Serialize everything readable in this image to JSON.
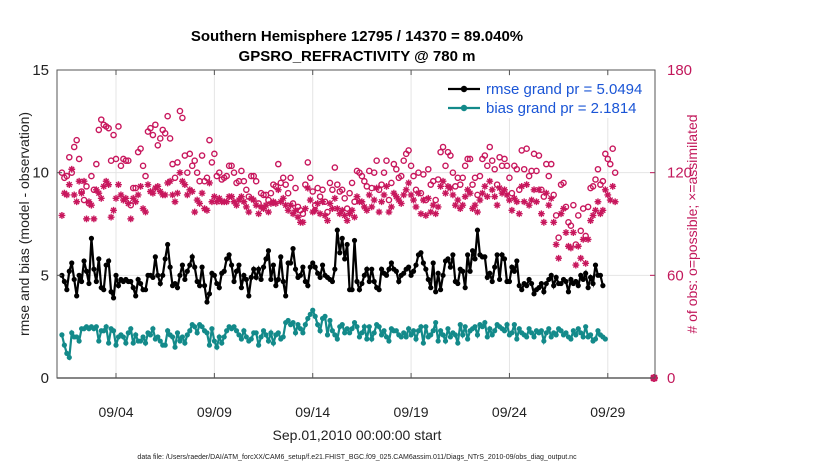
{
  "chart_data": {
    "type": "line",
    "title": "Southern Hemisphere 12795 / 14370 = 89.040%",
    "subtitle": "GPSRO_REFRACTIVITY @ 780 m",
    "xlabel": "Sep.01,2010 00:00:00 start",
    "ylabel": "rmse and bias (model - observation)",
    "ylabel_right": "# of obs: o=possible; ×=assimilated",
    "footnote": "data file: /Users/raeder/DAI/ATM_forcXX/CAM6_setup/f.e21.FHIST_BGC.f09_025.CAM6assim.011/Diags_NTrS_2010-09/obs_diag_output.nc",
    "x_start_day": 1,
    "x_end_day": 31.4,
    "x_tick_days": [
      4,
      9,
      14,
      19,
      24,
      29
    ],
    "x_tick_labels": [
      "09/04",
      "09/09",
      "09/14",
      "09/19",
      "09/24",
      "09/29"
    ],
    "ylim": [
      0,
      15
    ],
    "yticks": [
      0,
      5,
      10,
      15
    ],
    "ylim_right": [
      0,
      180
    ],
    "yticks_right": [
      0,
      60,
      120,
      180
    ],
    "grid": true,
    "legend_position": "top-right",
    "series": [
      {
        "name": "rmse grand pr = 5.0494",
        "axis": "left",
        "color": "#000000",
        "marker": "filled-circle",
        "values": [
          5.0,
          4.7,
          4.3,
          5.2,
          5.6,
          4.8,
          4.0,
          5.0,
          4.7,
          5.7,
          5.2,
          4.6,
          6.8,
          5.3,
          4.7,
          5.8,
          4.4,
          4.3,
          5.5,
          5.7,
          4.2,
          3.9,
          5.0,
          4.5,
          4.8,
          4.7,
          4.8,
          4.7,
          4.7,
          4.4,
          4.0,
          4.8,
          4.6,
          4.3,
          4.3,
          5.0,
          5.0,
          4.9,
          5.9,
          5.0,
          4.6,
          5.0,
          5.8,
          6.5,
          5.4,
          4.5,
          4.6,
          4.4,
          5.0,
          5.5,
          4.8,
          5.2,
          5.5,
          5.9,
          5.4,
          4.7,
          4.5,
          5.4,
          4.5,
          3.7,
          4.1,
          5.1,
          5.0,
          4.6,
          4.4,
          5.1,
          5.2,
          5.8,
          6.0,
          5.5,
          4.7,
          5.2,
          5.5,
          4.4,
          5.0,
          4.8,
          4.0,
          4.9,
          5.3,
          4.9,
          5.3,
          4.8,
          5.4,
          5.8,
          6.2,
          4.8,
          5.5,
          4.5,
          4.8,
          5.9,
          4.7,
          4.0,
          5.6,
          5.6,
          6.3,
          5.3,
          4.9,
          5.0,
          5.4,
          4.7,
          4.5,
          5.4,
          5.6,
          5.4,
          5.1,
          4.9,
          5.5,
          5.0,
          4.9,
          4.8,
          4.7,
          5.3,
          7.2,
          6.1,
          6.8,
          5.8,
          6.5,
          4.3,
          4.3,
          6.7,
          4.7,
          4.3,
          4.6,
          5.0,
          5.3,
          4.7,
          5.3,
          4.7,
          4.4,
          4.3,
          5.3,
          5.1,
          5.0,
          5.3,
          5.6,
          5.3,
          5.2,
          4.7,
          5.0,
          5.1,
          5.3,
          5.4,
          5.0,
          5.2,
          5.5,
          6.0,
          6.1,
          5.6,
          5.3,
          4.8,
          4.4,
          5.6,
          4.2,
          5.1,
          4.3,
          5.0,
          5.7,
          5.8,
          5.4,
          6.0,
          4.7,
          4.6,
          5.3,
          5.2,
          4.4,
          6.0,
          5.2,
          6.2,
          5.8,
          7.2,
          6.0,
          5.9,
          5.9,
          4.9,
          5.1,
          4.7,
          5.4,
          6.0,
          4.8,
          6.0,
          5.8,
          4.7,
          4.7,
          5.4,
          5.2,
          5.7,
          4.5,
          4.3,
          4.6,
          4.5,
          4.8,
          4.6,
          4.1,
          4.3,
          4.4,
          4.6,
          4.2,
          4.6,
          4.8,
          5.0,
          4.5,
          4.9,
          4.6,
          4.6,
          4.8,
          4.7,
          4.2,
          4.8,
          4.6,
          4.7,
          4.5,
          5.0,
          4.8,
          5.1,
          4.4,
          4.9,
          4.6,
          5.5,
          5.0,
          5.0,
          4.5
        ]
      },
      {
        "name": "bias grand pr = 2.1814",
        "axis": "left",
        "color": "#138a8a",
        "marker": "filled-circle",
        "values": [
          2.1,
          1.6,
          1.2,
          1.0,
          2.2,
          2.0,
          2.0,
          1.8,
          2.4,
          2.4,
          2.5,
          2.4,
          2.5,
          2.4,
          2.5,
          1.8,
          2.3,
          2.3,
          2.5,
          1.7,
          2.4,
          2.3,
          1.6,
          2.0,
          2.1,
          2.0,
          1.7,
          2.2,
          2.4,
          1.7,
          2.1,
          1.8,
          1.8,
          2.0,
          1.7,
          2.2,
          2.1,
          2.4,
          1.9,
          2.0,
          1.8,
          1.6,
          1.6,
          2.3,
          2.1,
          2.0,
          1.5,
          2.2,
          1.8,
          2.0,
          1.7,
          2.1,
          2.3,
          2.6,
          2.5,
          2.2,
          2.6,
          2.5,
          2.3,
          2.2,
          1.6,
          2.4,
          1.8,
          1.5,
          2.0,
          1.7,
          2.0,
          2.3,
          2.5,
          2.4,
          2.5,
          2.3,
          2.1,
          1.9,
          2.3,
          2.0,
          1.8,
          1.9,
          2.2,
          2.2,
          1.6,
          2.0,
          2.3,
          2.1,
          1.8,
          2.2,
          1.7,
          2.1,
          2.2,
          1.9,
          2.0,
          2.7,
          2.8,
          2.6,
          2.7,
          2.2,
          2.6,
          2.4,
          2.2,
          2.6,
          2.9,
          3.1,
          3.3,
          3.0,
          2.6,
          2.3,
          2.9,
          3.0,
          2.1,
          2.8,
          2.3,
          2.1,
          1.9,
          2.5,
          2.6,
          2.2,
          2.4,
          2.2,
          2.4,
          2.7,
          2.5,
          2.0,
          2.2,
          2.5,
          1.9,
          2.5,
          1.9,
          2.2,
          2.6,
          2.5,
          2.1,
          2.3,
          2.0,
          1.8,
          2.4,
          2.3,
          2.3,
          2.1,
          2.0,
          2.2,
          2.0,
          2.4,
          2.1,
          2.3,
          1.9,
          2.3,
          2.5,
          1.7,
          2.5,
          2.0,
          2.1,
          2.3,
          2.7,
          1.8,
          2.3,
          2.1,
          1.8,
          2.4,
          2.0,
          2.2,
          2.1,
          1.7,
          2.6,
          2.1,
          2.5,
          1.9,
          2.3,
          2.4,
          2.5,
          2.1,
          2.6,
          2.5,
          2.7,
          2.0,
          2.4,
          2.1,
          2.3,
          2.6,
          2.5,
          2.4,
          2.3,
          2.6,
          2.1,
          2.2,
          2.6,
          1.9,
          2.4,
          2.2,
          2.1,
          2.0,
          2.4,
          2.2,
          2.0,
          2.3,
          2.2,
          2.3,
          1.8,
          2.2,
          2.4,
          2.0,
          2.2,
          2.1,
          2.4,
          2.3,
          2.1,
          2.2,
          2.0,
          1.9,
          2.3,
          2.1,
          2.4,
          2.2,
          2.0,
          2.5,
          2.0,
          2.1,
          1.8,
          1.9,
          2.3,
          2.1,
          2.0,
          1.9
        ]
      },
      {
        "name": "possible",
        "axis": "right",
        "color": "#c8175d",
        "marker": "open-circle",
        "values": [
          120,
          117,
          118,
          129,
          120,
          135,
          139,
          128,
          109,
          104,
          112,
          102,
          118,
          110,
          125,
          145,
          151,
          148,
          147,
          146,
          127,
          142,
          128,
          147,
          124,
          128,
          127,
          127,
          101,
          111,
          111,
          132,
          134,
          124,
          118,
          144,
          146,
          142,
          148,
          136,
          140,
          145,
          143,
          153,
          140,
          125,
          117,
          126,
          156,
          152,
          130,
          120,
          131,
          124,
          127,
          120,
          115,
          130,
          115,
          117,
          139,
          126,
          131,
          118,
          120,
          116,
          117,
          118,
          124,
          124,
          120,
          114,
          115,
          121,
          115,
          110,
          106,
          118,
          118,
          115,
          102,
          108,
          107,
          107,
          104,
          108,
          113,
          112,
          125,
          114,
          117,
          113,
          108,
          117,
          102,
          111,
          100,
          98,
          96,
          113,
          126,
          117,
          109,
          101,
          111,
          106,
          110,
          103,
          97,
          114,
          110,
          123,
          113,
          109,
          110,
          105,
          99,
          108,
          114,
          103,
          121,
          120,
          118,
          115,
          112,
          121,
          111,
          120,
          127,
          110,
          113,
          120,
          127,
          104,
          114,
          125,
          122,
          117,
          118,
          127,
          131,
          133,
          124,
          118,
          110,
          120,
          108,
          119,
          104,
          122,
          113,
          115,
          104,
          116,
          132,
          135,
          124,
          132,
          130,
          120,
          112,
          117,
          113,
          117,
          124,
          128,
          128,
          113,
          117,
          107,
          118,
          128,
          130,
          124,
          135,
          127,
          122,
          113,
          129,
          124,
          128,
          124,
          117,
          108,
          124,
          122,
          110,
          133,
          122,
          134,
          118,
          121,
          131,
          121,
          130,
          110,
          106,
          125,
          118,
          125,
          107,
          95,
          82,
          113,
          114,
          100,
          91,
          89,
          101,
          78,
          95,
          86,
          99,
          83,
          100,
          111,
          112,
          116,
          122,
          113,
          115,
          131,
          128,
          125,
          134,
          120
        ]
      },
      {
        "name": "assimilated",
        "axis": "right",
        "color": "#c8175d",
        "marker": "asterisk",
        "values": [
          95,
          108,
          107,
          113,
          122,
          107,
          103,
          115,
          108,
          115,
          93,
          103,
          101,
          93,
          110,
          108,
          105,
          112,
          115,
          113,
          94,
          98,
          105,
          113,
          107,
          104,
          105,
          102,
          93,
          105,
          103,
          107,
          112,
          99,
          97,
          113,
          109,
          108,
          111,
          112,
          109,
          107,
          107,
          114,
          115,
          107,
          103,
          108,
          120,
          115,
          113,
          107,
          110,
          109,
          97,
          104,
          102,
          108,
          99,
          98,
          114,
          103,
          106,
          103,
          105,
          103,
          103,
          103,
          106,
          106,
          103,
          101,
          104,
          106,
          103,
          100,
          97,
          105,
          104,
          101,
          96,
          100,
          99,
          101,
          97,
          102,
          103,
          102,
          110,
          103,
          105,
          101,
          98,
          101,
          96,
          98,
          94,
          91,
          91,
          99,
          111,
          104,
          97,
          98,
          102,
          96,
          103,
          95,
          92,
          102,
          99,
          105,
          99,
          96,
          98,
          95,
          92,
          96,
          98,
          94,
          106,
          103,
          103,
          100,
          98,
          107,
          100,
          104,
          111,
          97,
          103,
          107,
          112,
          97,
          100,
          108,
          106,
          104,
          102,
          107,
          110,
          114,
          107,
          104,
          100,
          108,
          96,
          104,
          95,
          105,
          97,
          101,
          96,
          100,
          112,
          115,
          108,
          112,
          111,
          107,
          101,
          104,
          99,
          101,
          106,
          110,
          108,
          99,
          101,
          97,
          104,
          108,
          112,
          106,
          115,
          110,
          106,
          101,
          111,
          108,
          110,
          107,
          104,
          98,
          105,
          103,
          96,
          112,
          103,
          113,
          101,
          104,
          110,
          103,
          110,
          96,
          91,
          108,
          101,
          105,
          91,
          78,
          70,
          96,
          99,
          85,
          77,
          76,
          85,
          66,
          77,
          70,
          81,
          67,
          81,
          92,
          95,
          98,
          103,
          96,
          98,
          110,
          107,
          104,
          112,
          103
        ]
      }
    ]
  }
}
